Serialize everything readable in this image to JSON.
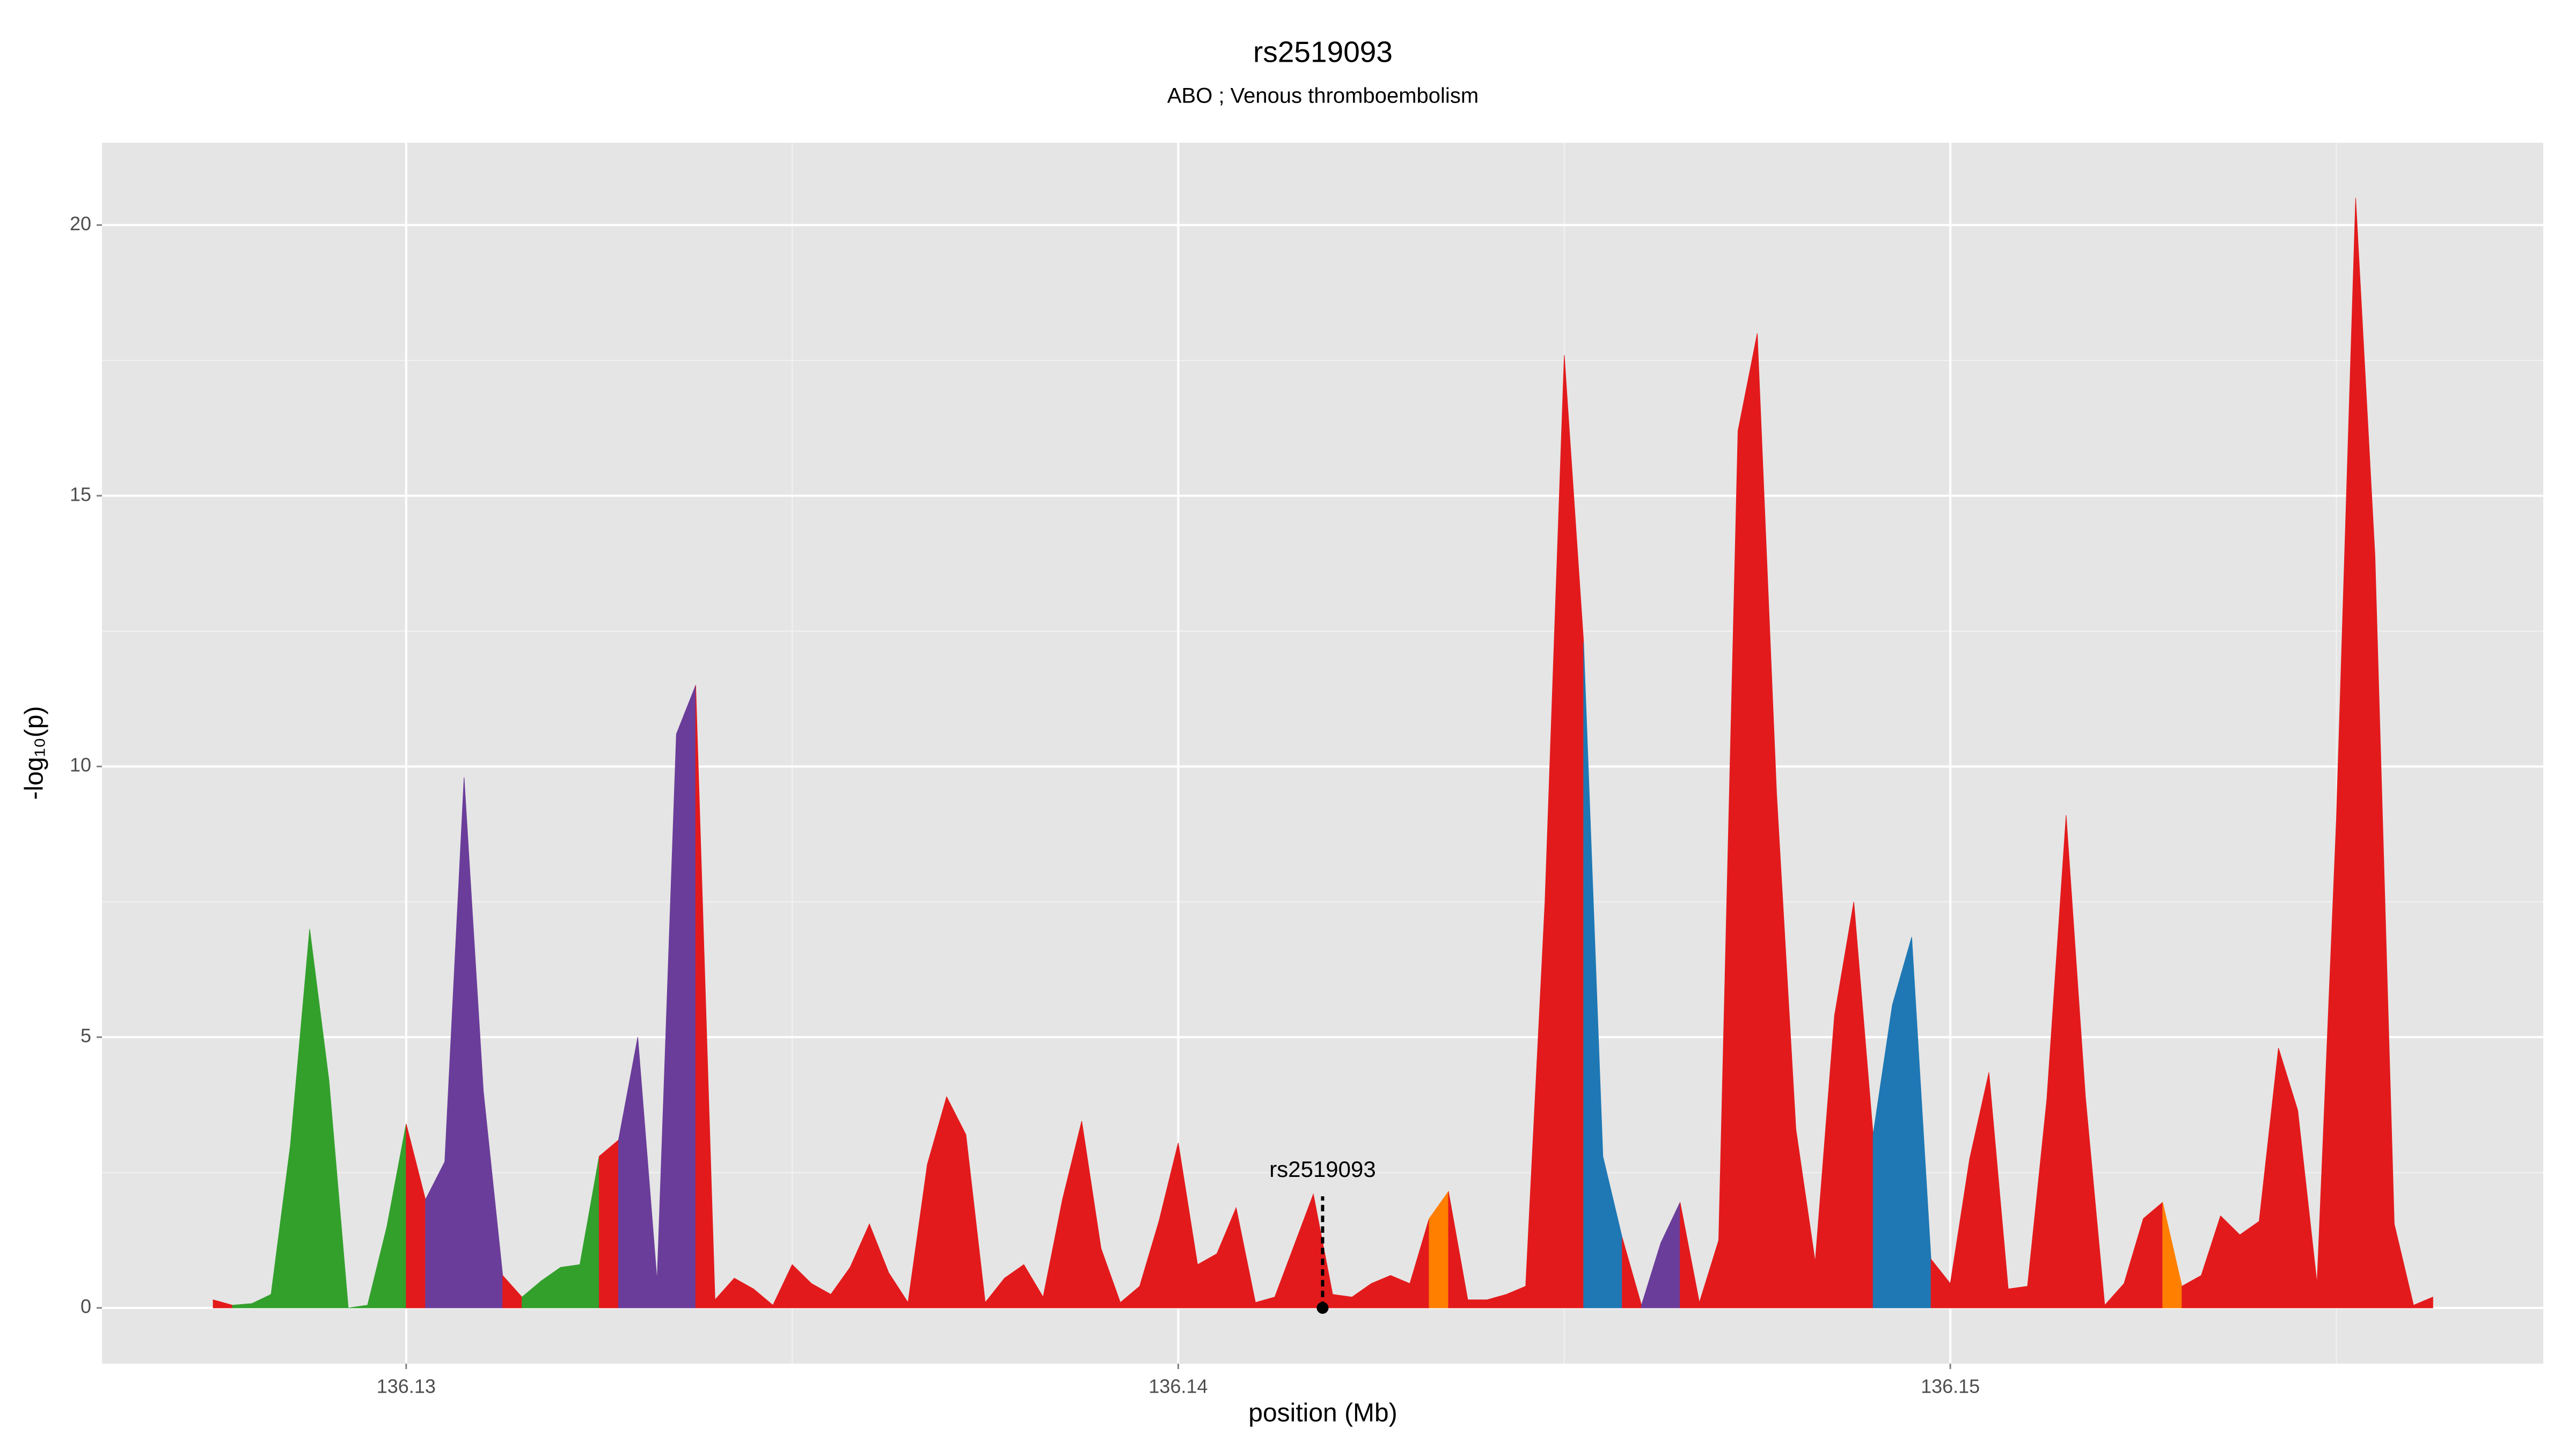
{
  "chart_data": {
    "type": "area",
    "title": "rs2519093",
    "subtitle": "ABO ; Venous thromboembolism",
    "xlabel": "position (Mb)",
    "ylabel": "-log₁₀(p)",
    "xlim": [
      136.12606,
      136.15768
    ],
    "ylim": [
      -1.03,
      21.52
    ],
    "xticks": [
      136.13,
      136.14,
      136.15
    ],
    "yticks": [
      0,
      5,
      10,
      15,
      20
    ],
    "grid": true,
    "annotation": {
      "text": "rs2519093",
      "x": 136.14187,
      "y": 0
    },
    "series": [
      {
        "color": "#e31a1c",
        "x": [
          136.1275,
          136.12775
        ],
        "values": [
          0.15,
          0.05
        ]
      },
      {
        "color": "#33a02c",
        "x": [
          136.12775,
          136.128,
          136.12825,
          136.1285,
          136.12875,
          136.129,
          136.12925,
          136.1295,
          136.12975,
          136.13
        ],
        "values": [
          0.05,
          0.08,
          0.25,
          3.0,
          7.0,
          4.2,
          0.0,
          0.05,
          1.5,
          3.4
        ]
      },
      {
        "color": "#e31a1c",
        "x": [
          136.13,
          136.13025
        ],
        "values": [
          3.4,
          2.0
        ]
      },
      {
        "color": "#6a3d9a",
        "x": [
          136.13025,
          136.1305,
          136.13075,
          136.131,
          136.13125
        ],
        "values": [
          2.0,
          2.7,
          9.8,
          4.0,
          0.6
        ]
      },
      {
        "color": "#e31a1c",
        "x": [
          136.13125,
          136.1315
        ],
        "values": [
          0.6,
          0.2
        ]
      },
      {
        "color": "#33a02c",
        "x": [
          136.1315,
          136.13175,
          136.132,
          136.13225,
          136.1325
        ],
        "values": [
          0.2,
          0.5,
          0.75,
          0.8,
          2.8
        ]
      },
      {
        "color": "#e31a1c",
        "x": [
          136.1325,
          136.13275
        ],
        "values": [
          2.8,
          3.1
        ]
      },
      {
        "color": "#6a3d9a",
        "x": [
          136.13275,
          136.133,
          136.13325,
          136.1335,
          136.13375
        ],
        "values": [
          3.1,
          5.0,
          0.5,
          10.6,
          11.5
        ]
      },
      {
        "color": "#e31a1c",
        "x": [
          136.13375,
          136.134,
          136.13425,
          136.1345,
          136.13475,
          136.135,
          136.13525,
          136.1355,
          136.13575,
          136.136,
          136.13625,
          136.1365,
          136.13675,
          136.137,
          136.13725,
          136.1375,
          136.13775,
          136.138,
          136.13825,
          136.1385,
          136.13875,
          136.139,
          136.13925,
          136.1395,
          136.13975,
          136.14,
          136.14025,
          136.1405,
          136.14075,
          136.141,
          136.14125,
          136.1415,
          136.14175,
          136.142,
          136.14225,
          136.1425,
          136.14275,
          136.143,
          136.14325
        ],
        "values": [
          11.5,
          0.15,
          0.55,
          0.35,
          0.05,
          0.8,
          0.45,
          0.25,
          0.75,
          1.55,
          0.65,
          0.1,
          2.65,
          3.9,
          3.2,
          0.1,
          0.55,
          0.8,
          0.2,
          2.0,
          3.45,
          1.1,
          0.1,
          0.4,
          1.6,
          3.05,
          0.8,
          1.0,
          1.85,
          0.1,
          0.2,
          1.15,
          2.1,
          0.25,
          0.2,
          0.45,
          0.6,
          0.45,
          1.65
        ]
      },
      {
        "color": "#ff7f00",
        "x": [
          136.14325,
          136.1435
        ],
        "values": [
          1.65,
          2.15
        ]
      },
      {
        "color": "#e31a1c",
        "x": [
          136.1435,
          136.14375,
          136.144,
          136.14425,
          136.1445,
          136.14475,
          136.145,
          136.14525
        ],
        "values": [
          2.15,
          0.15,
          0.15,
          0.25,
          0.4,
          7.5,
          17.6,
          12.3
        ]
      },
      {
        "color": "#1f78b4",
        "x": [
          136.14525,
          136.1455,
          136.14575
        ],
        "values": [
          12.3,
          2.8,
          1.3
        ]
      },
      {
        "color": "#e31a1c",
        "x": [
          136.14575,
          136.146
        ],
        "values": [
          1.3,
          0.05
        ]
      },
      {
        "color": "#6a3d9a",
        "x": [
          136.146,
          136.14625,
          136.1465
        ],
        "values": [
          0.05,
          1.2,
          1.95
        ]
      },
      {
        "color": "#e31a1c",
        "x": [
          136.1465,
          136.14675,
          136.147,
          136.14725,
          136.1475,
          136.14775,
          136.148,
          136.14825,
          136.1485,
          136.14875,
          136.149
        ],
        "values": [
          1.95,
          0.1,
          1.25,
          16.2,
          18.0,
          9.5,
          3.3,
          0.85,
          5.4,
          7.5,
          3.2
        ]
      },
      {
        "color": "#1f78b4",
        "x": [
          136.149,
          136.14925,
          136.1495,
          136.14975
        ],
        "values": [
          3.2,
          5.6,
          6.85,
          0.9
        ]
      },
      {
        "color": "#e31a1c",
        "x": [
          136.14975,
          136.15,
          136.15025,
          136.1505,
          136.15075,
          136.151,
          136.15125,
          136.1515,
          136.15175,
          136.152,
          136.15225,
          136.1525,
          136.15275
        ],
        "values": [
          0.9,
          0.45,
          2.75,
          4.35,
          0.35,
          0.4,
          3.85,
          9.1,
          3.9,
          0.05,
          0.45,
          1.65,
          1.95
        ]
      },
      {
        "color": "#ff7f00",
        "x": [
          136.15275,
          136.153
        ],
        "values": [
          1.95,
          0.4
        ]
      },
      {
        "color": "#e31a1c",
        "x": [
          136.153,
          136.15325,
          136.1535,
          136.15375,
          136.154,
          136.15425,
          136.1545,
          136.15475,
          136.155,
          136.15525,
          136.1555,
          136.15575,
          136.156,
          136.15625
        ],
        "values": [
          0.4,
          0.6,
          1.7,
          1.35,
          1.6,
          4.8,
          3.65,
          0.45,
          9.0,
          20.5,
          13.9,
          1.55,
          0.05,
          0.2
        ]
      }
    ]
  }
}
